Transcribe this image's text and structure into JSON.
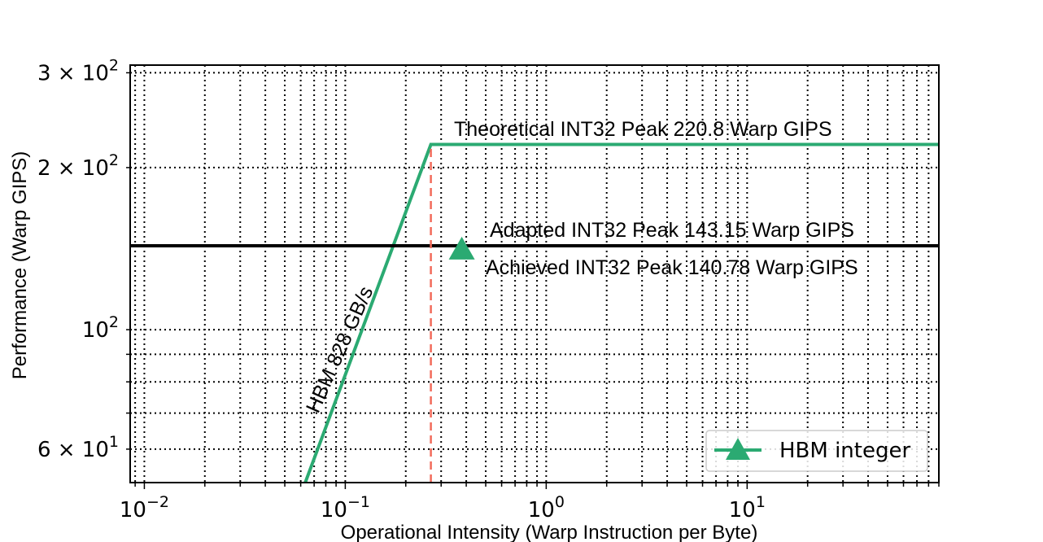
{
  "chart_data": {
    "type": "line",
    "title": "",
    "xlabel": "Operational Intensity (Warp Instruction per Byte)",
    "ylabel": "Performance (Warp GIPS)",
    "xscale": "log",
    "yscale": "log",
    "xlim": [
      0.0085,
      90
    ],
    "ylim": [
      52,
      310
    ],
    "grid": true,
    "x_ticks": [
      {
        "value": 0.01,
        "base": "10",
        "exp": "−2"
      },
      {
        "value": 0.1,
        "base": "10",
        "exp": "−1"
      },
      {
        "value": 1,
        "base": "10",
        "exp": "0"
      },
      {
        "value": 10,
        "base": "10",
        "exp": "1"
      }
    ],
    "y_ticks": [
      {
        "value": 60,
        "mant": "6 × 10",
        "exp": "1"
      },
      {
        "value": 100,
        "mant": "10",
        "exp": "2"
      },
      {
        "value": 200,
        "mant": "2 × 10",
        "exp": "2"
      },
      {
        "value": 300,
        "mant": "3 × 10",
        "exp": "2"
      }
    ],
    "series": [
      {
        "name": "",
        "kind": "roofline",
        "color": "#2baa72",
        "x": [
          0.0632,
          0.2667,
          90
        ],
        "y": [
          52,
          220.8,
          220.8
        ]
      },
      {
        "name": "",
        "kind": "hline",
        "color": "#000000",
        "x": [
          0.0085,
          90
        ],
        "y": [
          143.15,
          143.15
        ]
      },
      {
        "name": "",
        "kind": "ridge-vline",
        "color": "#f26b5b",
        "x": [
          0.2667,
          0.2667
        ],
        "y": [
          52,
          220.8
        ]
      },
      {
        "name": "HBM integer",
        "kind": "marker",
        "marker": "triangle",
        "color": "#2baa72",
        "x": [
          0.38
        ],
        "y": [
          140.78
        ]
      }
    ],
    "annotations": [
      {
        "text": "Theoretical INT32 Peak 220.8  Warp GIPS"
      },
      {
        "text": "Adapted INT32 Peak 143.15  Warp GIPS"
      },
      {
        "text": "Achieved INT32 Peak 140.78  Warp GIPS"
      },
      {
        "text": "HBM 828 GB/s"
      }
    ],
    "legend": {
      "position": "lower-right",
      "entries": [
        "HBM integer"
      ]
    }
  }
}
